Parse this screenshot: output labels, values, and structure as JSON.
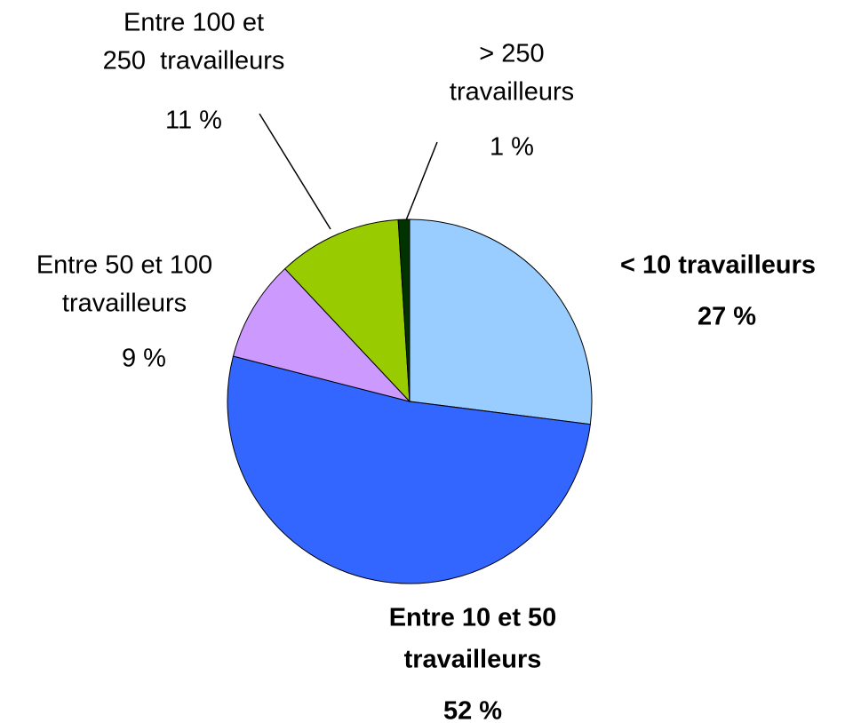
{
  "chart_data": {
    "type": "pie",
    "categories": [
      [
        "< 10 travailleurs"
      ],
      [
        "Entre 10 et 50",
        "travailleurs"
      ],
      [
        "Entre 50 et 100",
        "travailleurs"
      ],
      [
        "Entre 100 et",
        "250  travailleurs"
      ],
      [
        "> 250",
        "travailleurs"
      ]
    ],
    "values": [
      27,
      52,
      9,
      11,
      1
    ],
    "value_labels": [
      "27 %",
      "52 %",
      "9 %",
      "11 %",
      "1 %"
    ],
    "colors": [
      "#99ccff",
      "#3366ff",
      "#cc99ff",
      "#99cc00",
      "#003300"
    ]
  }
}
